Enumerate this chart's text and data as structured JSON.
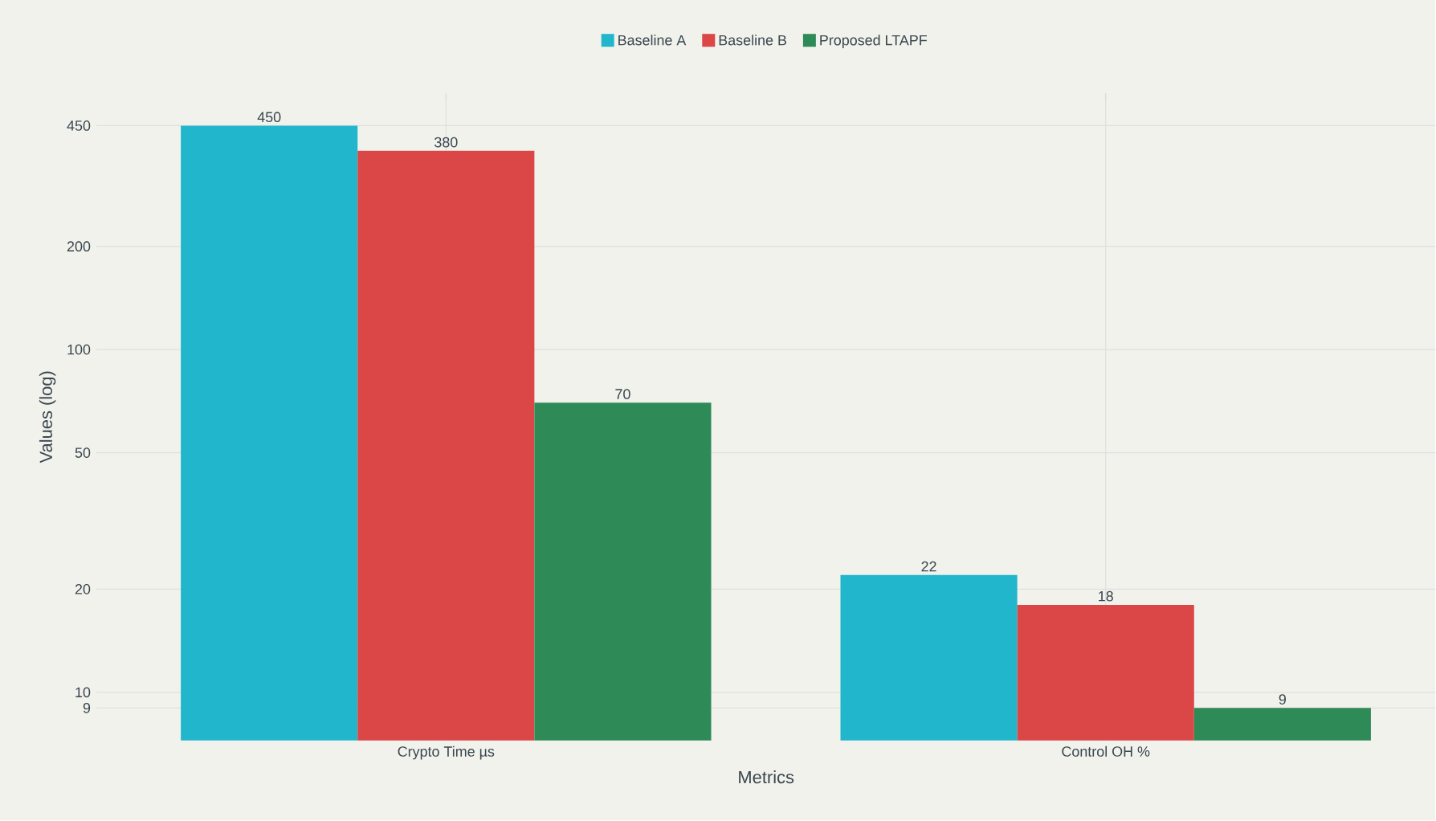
{
  "chart_data": {
    "type": "bar",
    "xlabel": "Metrics",
    "ylabel": "Values (log)",
    "categories": [
      "Crypto Time µs",
      "Control OH %"
    ],
    "series": [
      {
        "name": "Baseline A",
        "color": "#22b6cd",
        "values": [
          450,
          22
        ]
      },
      {
        "name": "Baseline B",
        "color": "#db4646",
        "values": [
          380,
          18
        ]
      },
      {
        "name": "Proposed LTAPF",
        "color": "#2e8b57",
        "values": [
          70,
          9
        ]
      }
    ],
    "log": "y",
    "ylim": [
      7.24,
      560
    ],
    "yticks": [
      9,
      10,
      20,
      50,
      100,
      200,
      450
    ],
    "grid": true,
    "legend": "top",
    "data_labels": true
  }
}
